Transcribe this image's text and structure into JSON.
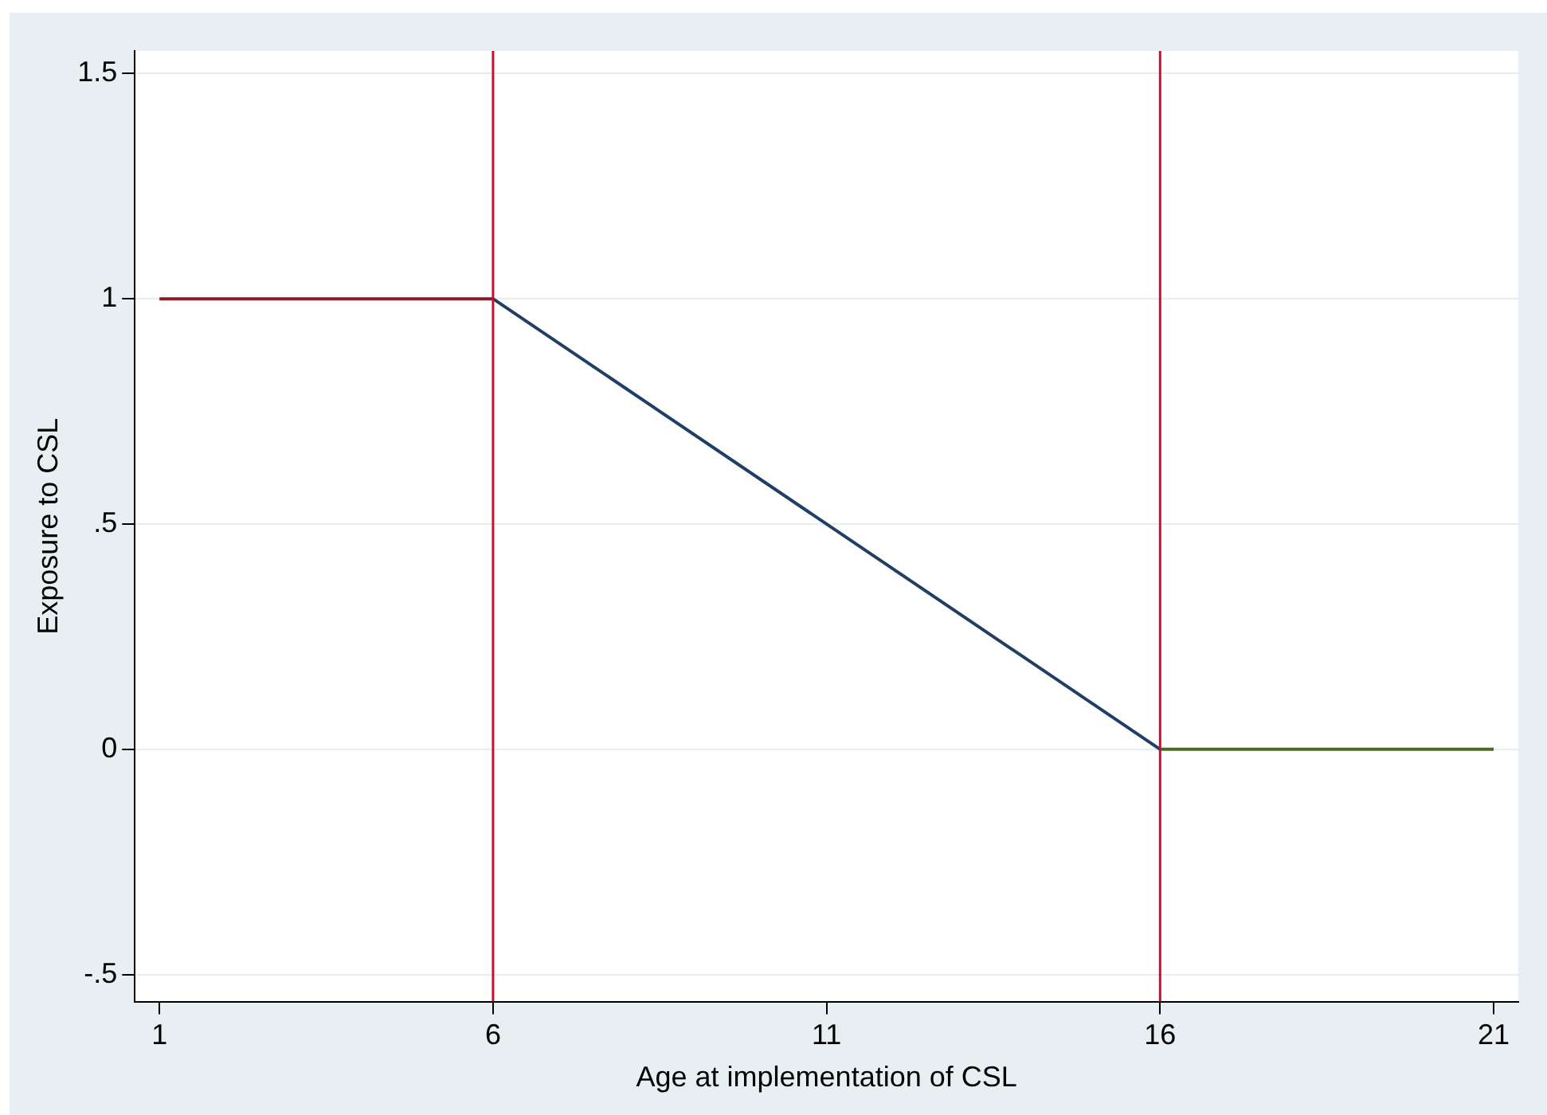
{
  "chart_data": {
    "type": "line",
    "xlabel": "Age at implementation of CSL",
    "ylabel": "Exposure to CSL",
    "series": [
      {
        "color": "#8b1a2b",
        "x": [
          1,
          6
        ],
        "values": [
          1,
          1
        ]
      },
      {
        "color": "#1f3f66",
        "x": [
          6,
          16
        ],
        "values": [
          1,
          0
        ]
      },
      {
        "color": "#4a6a1e",
        "x": [
          16,
          21
        ],
        "values": [
          0,
          0
        ]
      }
    ],
    "xlim": [
      0.63,
      21.37
    ],
    "ylim": [
      -0.56,
      1.55
    ],
    "xticks": [
      1,
      6,
      11,
      16,
      21
    ],
    "yticks": [
      {
        "value": -0.5,
        "label": "-.5"
      },
      0,
      {
        "value": 0.5,
        "label": ".5"
      },
      1,
      1.5
    ],
    "ref_lines": [
      {
        "axis": "x",
        "value": 6,
        "color": "#c8102e"
      },
      {
        "axis": "x",
        "value": 16,
        "color": "#c8102e"
      }
    ],
    "grid": "y",
    "marker": "none",
    "legend": false
  }
}
